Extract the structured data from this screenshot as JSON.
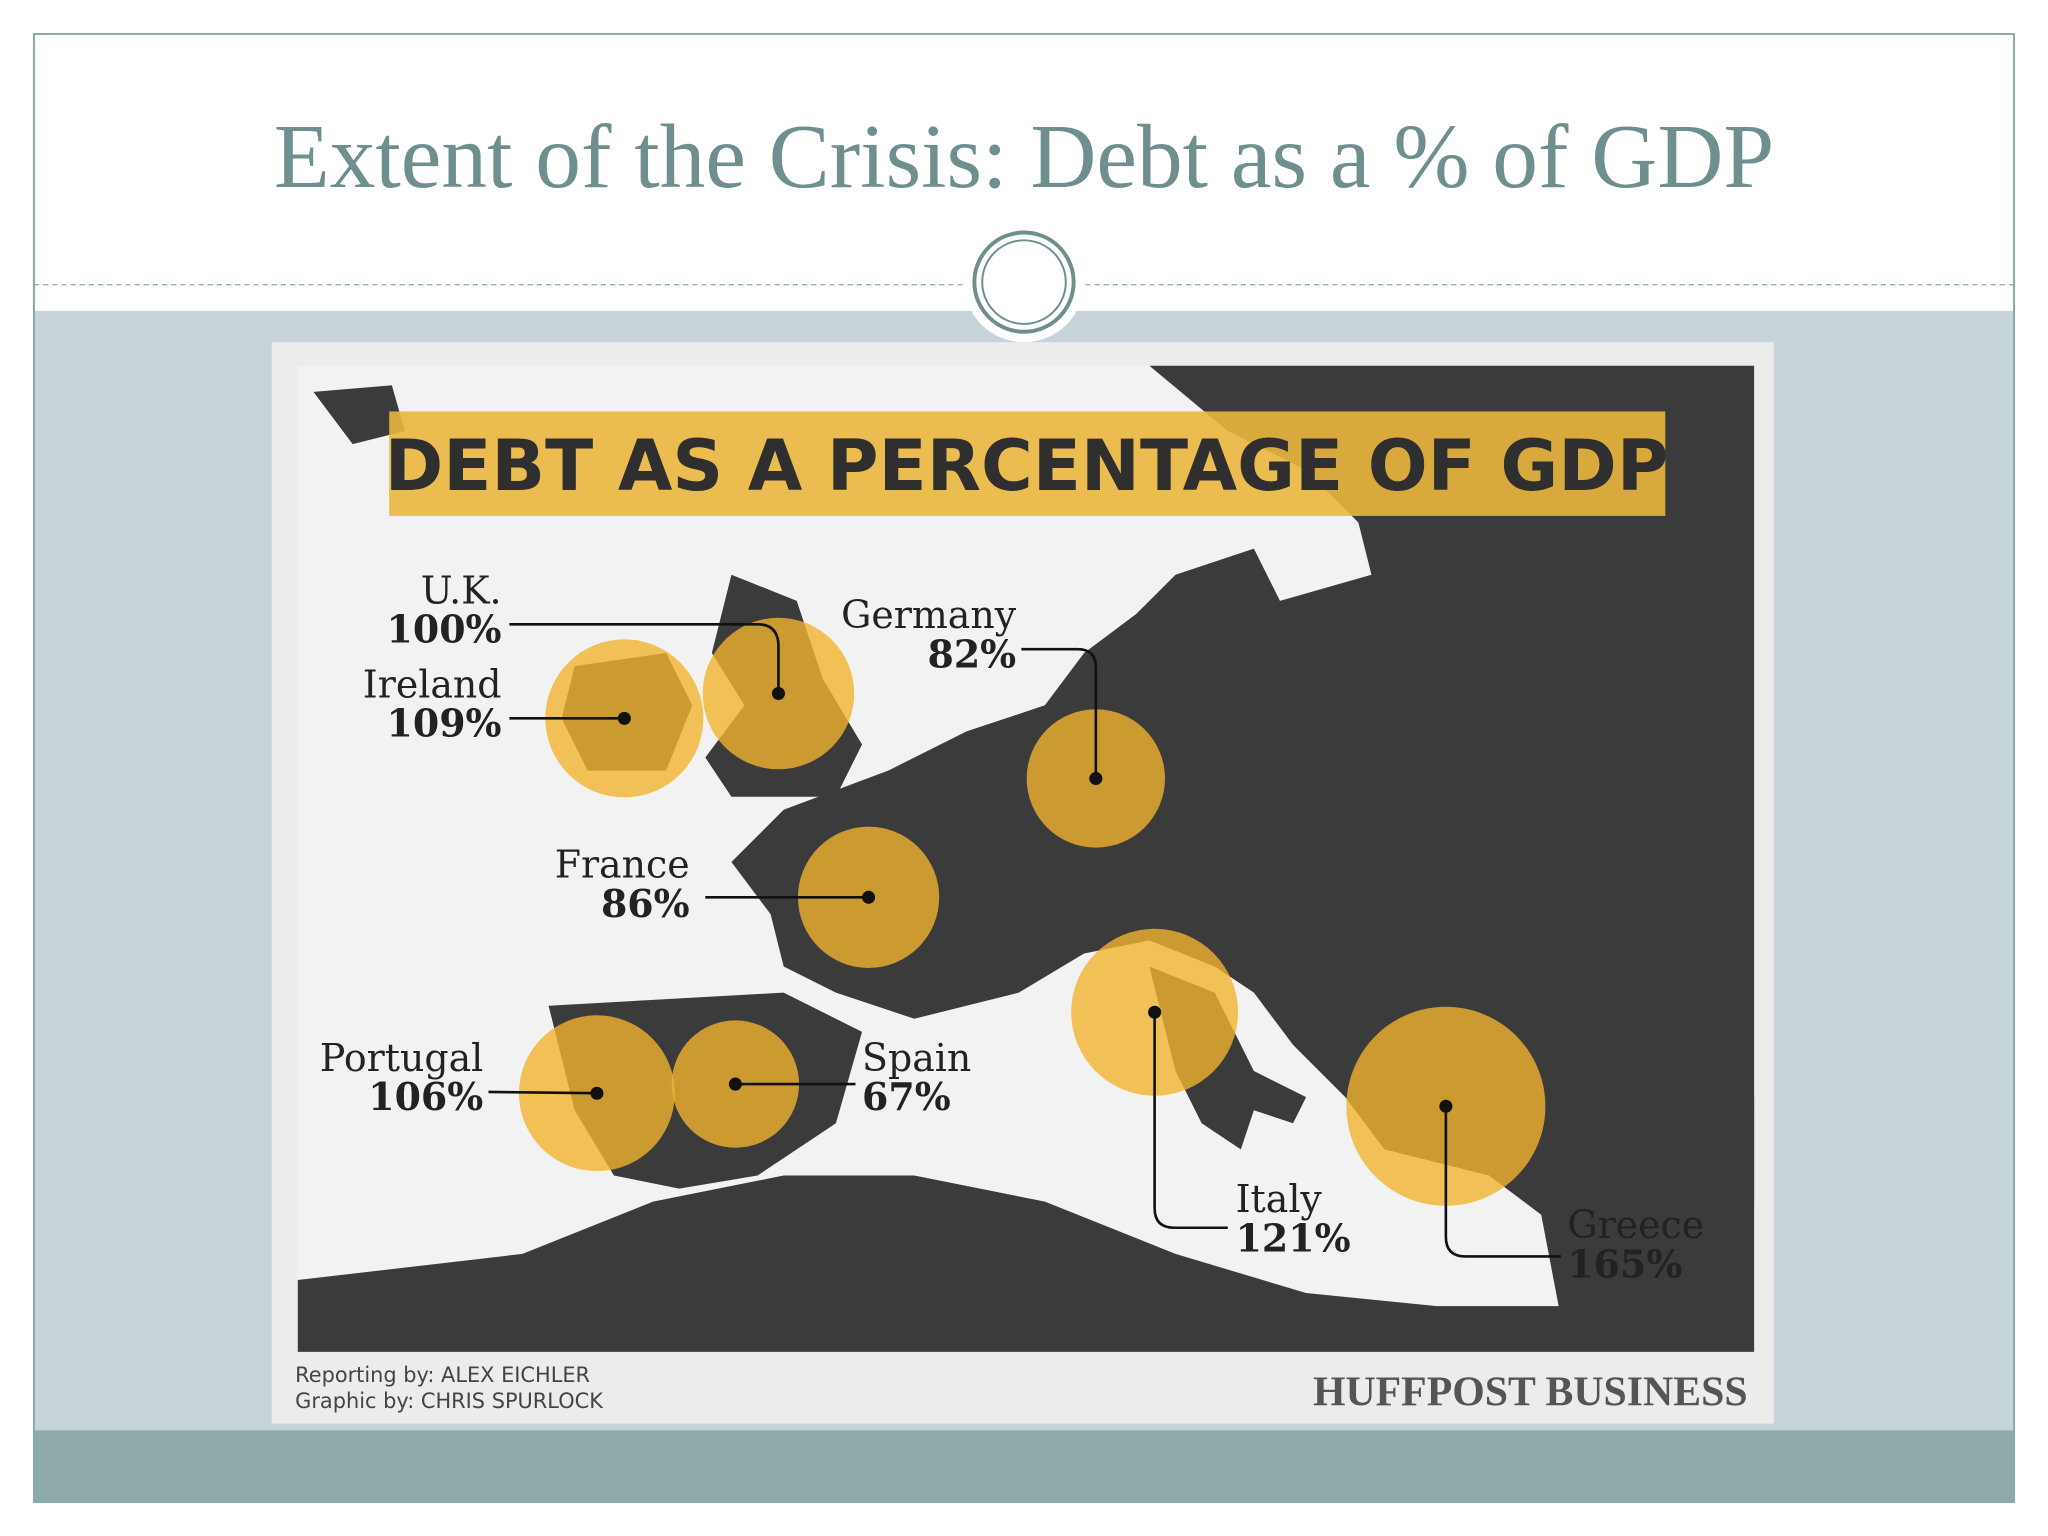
{
  "slide": {
    "title": "Extent of the Crisis: Debt as a % of GDP"
  },
  "map": {
    "title": "DEBT AS A PERCENTAGE OF GDP",
    "countries": [
      {
        "name": "U.K.",
        "value": 100,
        "value_label": "100%"
      },
      {
        "name": "Ireland",
        "value": 109,
        "value_label": "109%"
      },
      {
        "name": "Germany",
        "value": 82,
        "value_label": "82%"
      },
      {
        "name": "France",
        "value": 86,
        "value_label": "86%"
      },
      {
        "name": "Portugal",
        "value": 106,
        "value_label": "106%"
      },
      {
        "name": "Spain",
        "value": 67,
        "value_label": "67%"
      },
      {
        "name": "Italy",
        "value": 121,
        "value_label": "121%"
      },
      {
        "name": "Greece",
        "value": 165,
        "value_label": "165%"
      }
    ],
    "credits": [
      "Reporting by: ALEX EICHLER",
      "Graphic by: CHRIS SPURLOCK"
    ],
    "brand": "HUFFPOST BUSINESS"
  }
}
